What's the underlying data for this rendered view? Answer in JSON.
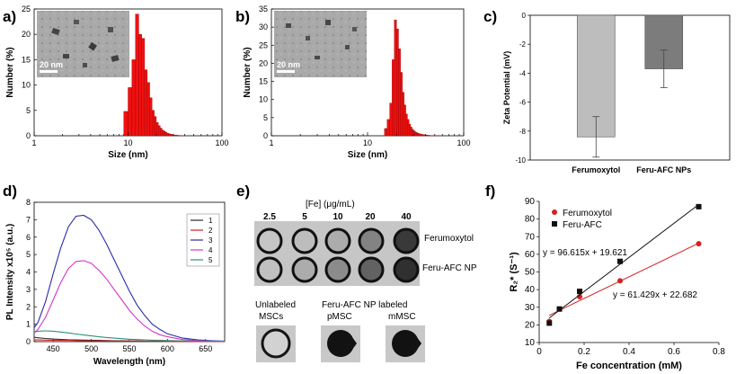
{
  "panels": {
    "a": {
      "label": "a)"
    },
    "b": {
      "label": "b)"
    },
    "c": {
      "label": "c)"
    },
    "d": {
      "label": "d)"
    },
    "e": {
      "label": "e)"
    },
    "f": {
      "label": "f)"
    }
  },
  "tem": {
    "scale_bar": "20 nm"
  },
  "mri": {
    "concentration_header": "[Fe] (μg/mL)",
    "concentrations": [
      "2.5",
      "5",
      "10",
      "20",
      "40"
    ],
    "row_labels": [
      "Ferumoxytol",
      "Feru-AFC NP"
    ],
    "cell_labels": [
      "Unlabeled\nMSCs",
      "Feru-AFC NP labeled\npMSC",
      "mMSC"
    ],
    "colors": {
      "background": "#c8c8c8",
      "ring": "#111111",
      "inner_light": "#cfcfcf",
      "inner_dark": "#2a2a2a"
    }
  },
  "chart_data": [
    {
      "id": "a",
      "type": "bar",
      "xscale": "log",
      "xlabel": "Size (nm)",
      "ylabel": "Number (%)",
      "xlim": [
        1,
        100
      ],
      "ylim": [
        0,
        25
      ],
      "xticks": [
        "1",
        "10",
        "100"
      ],
      "yticks": [
        "0",
        "5",
        "10",
        "15",
        "20",
        "25"
      ],
      "bin_width": 1,
      "bins": [
        9,
        10,
        11,
        12,
        13,
        14,
        15,
        16,
        17,
        18,
        19,
        20,
        21,
        22,
        23,
        24,
        25,
        26,
        27,
        28,
        29,
        30,
        31,
        32,
        33,
        34,
        35,
        36,
        37,
        38
      ],
      "values": [
        4.8,
        9.5,
        15.0,
        24.0,
        20.0,
        19.2,
        13.0,
        10.5,
        7.5,
        5.0,
        3.8,
        2.6,
        2.0,
        1.5,
        1.1,
        0.9,
        0.7,
        0.5,
        0.4,
        0.3,
        0.25,
        0.2,
        0.15,
        0.12,
        0.1,
        0.08,
        0.06,
        0.05,
        0.04,
        0.03
      ],
      "color": "#ee1111"
    },
    {
      "id": "b",
      "type": "bar",
      "xscale": "log",
      "xlabel": "Size (nm)",
      "ylabel": "Number (%)",
      "xlim": [
        1,
        100
      ],
      "ylim": [
        0,
        35
      ],
      "xticks": [
        "1",
        "10",
        "100"
      ],
      "yticks": [
        "0",
        "5",
        "10",
        "15",
        "20",
        "25",
        "30",
        "35"
      ],
      "bin_width": 1,
      "bins": [
        15,
        16,
        17,
        18,
        19,
        20,
        21,
        22,
        23,
        24,
        25,
        26,
        27,
        28,
        29,
        30,
        31,
        32,
        33,
        34,
        35,
        36,
        37,
        38,
        39,
        40,
        41,
        42,
        43,
        44,
        45,
        46,
        47,
        48,
        49,
        50
      ],
      "values": [
        2.0,
        4.5,
        9.0,
        21.0,
        32.0,
        29.5,
        24.0,
        17.5,
        12.0,
        8.5,
        6.0,
        4.5,
        3.2,
        2.4,
        1.8,
        1.4,
        1.1,
        0.9,
        0.7,
        0.6,
        0.5,
        0.4,
        0.35,
        0.3,
        0.25,
        0.2,
        0.18,
        0.15,
        0.12,
        0.1,
        0.08,
        0.07,
        0.06,
        0.05,
        0.04,
        0.03
      ],
      "color": "#ee1111"
    },
    {
      "id": "c",
      "type": "bar",
      "ylabel": "Zeta Potential (mV)",
      "categories": [
        "Ferumoxytol",
        "Feru-AFC NPs"
      ],
      "values": [
        -8.4,
        -3.7
      ],
      "errors": [
        1.4,
        1.3
      ],
      "ylim": [
        0,
        -10
      ],
      "yticks": [
        "0",
        "-2",
        "-4",
        "-6",
        "-8",
        "-10"
      ],
      "colors": [
        "#bdbdbd",
        "#7c7c7c"
      ]
    },
    {
      "id": "d",
      "type": "line",
      "xlabel": "Wavelength (nm)",
      "ylabel": "PL Intensity x10⁵ (a.u.)",
      "xlim": [
        425,
        675
      ],
      "ylim": [
        0,
        8
      ],
      "xticks": [
        "450",
        "500",
        "550",
        "600",
        "650"
      ],
      "yticks": [
        "0",
        "1",
        "2",
        "3",
        "4",
        "5",
        "6",
        "7",
        "8"
      ],
      "x": [
        425,
        430,
        440,
        450,
        460,
        470,
        480,
        490,
        500,
        510,
        520,
        530,
        540,
        550,
        560,
        570,
        580,
        590,
        600,
        620,
        640,
        660,
        675
      ],
      "series": [
        {
          "name": "1",
          "color": "#2b2b2b",
          "values": [
            0.25,
            0.22,
            0.18,
            0.15,
            0.13,
            0.11,
            0.1,
            0.09,
            0.08,
            0.07,
            0.06,
            0.05,
            0.05,
            0.04,
            0.04,
            0.03,
            0.03,
            0.03,
            0.02,
            0.02,
            0.02,
            0.01,
            0.01
          ]
        },
        {
          "name": "2",
          "color": "#d21f1f",
          "values": [
            0.1,
            0.1,
            0.09,
            0.08,
            0.07,
            0.07,
            0.06,
            0.05,
            0.05,
            0.04,
            0.04,
            0.03,
            0.03,
            0.03,
            0.02,
            0.02,
            0.02,
            0.02,
            0.01,
            0.01,
            0.01,
            0.01,
            0.01
          ]
        },
        {
          "name": "3",
          "color": "#2a2aa8",
          "values": [
            0.8,
            1.1,
            2.3,
            3.9,
            5.4,
            6.6,
            7.2,
            7.25,
            7.0,
            6.4,
            5.6,
            4.7,
            3.8,
            2.9,
            2.1,
            1.5,
            1.0,
            0.7,
            0.45,
            0.2,
            0.1,
            0.05,
            0.03
          ]
        },
        {
          "name": "4",
          "color": "#d633c9",
          "values": [
            0.5,
            0.7,
            1.4,
            2.4,
            3.4,
            4.2,
            4.6,
            4.65,
            4.5,
            4.1,
            3.6,
            3.0,
            2.4,
            1.8,
            1.3,
            0.9,
            0.6,
            0.4,
            0.28,
            0.12,
            0.06,
            0.03,
            0.02
          ]
        },
        {
          "name": "5",
          "color": "#2f8f7a",
          "values": [
            0.55,
            0.6,
            0.62,
            0.6,
            0.55,
            0.5,
            0.44,
            0.38,
            0.33,
            0.28,
            0.24,
            0.2,
            0.17,
            0.14,
            0.12,
            0.1,
            0.08,
            0.07,
            0.06,
            0.04,
            0.03,
            0.02,
            0.02
          ]
        }
      ]
    },
    {
      "id": "f",
      "type": "scatter",
      "xlabel": "Fe concentration (mM)",
      "ylabel": "R₂* (S⁻¹)",
      "xlim": [
        0,
        0.8
      ],
      "ylim": [
        10,
        90
      ],
      "xticks": [
        "0",
        "0.2",
        "0.4",
        "0.6",
        "0.8"
      ],
      "yticks": [
        "10",
        "20",
        "30",
        "40",
        "50",
        "60",
        "70",
        "80",
        "90"
      ],
      "series": [
        {
          "name": "Ferumoxytol",
          "color": "#d42020",
          "marker": "circle",
          "x": [
            0.045,
            0.09,
            0.18,
            0.36,
            0.71
          ],
          "y": [
            22,
            29,
            36,
            45,
            66
          ],
          "fit_label": "y = 61.429x + 22.682",
          "slope": 61.429,
          "intercept": 22.682
        },
        {
          "name": "Feru-AFC",
          "color": "#111111",
          "marker": "square",
          "x": [
            0.045,
            0.09,
            0.18,
            0.36,
            0.71
          ],
          "y": [
            21,
            29,
            39,
            56,
            87
          ],
          "fit_label": "y = 96.615x + 19.621",
          "slope": 96.615,
          "intercept": 19.621
        }
      ]
    }
  ]
}
